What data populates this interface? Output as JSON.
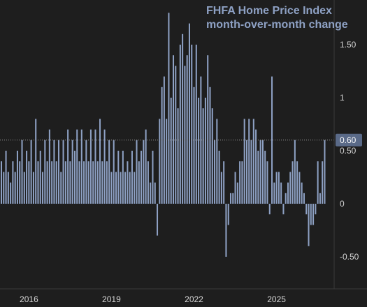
{
  "theme": {
    "background": "#1e1e1e",
    "bar_color": "#8ea1c4",
    "title_color": "#8ea1c4",
    "axis_text": "#d6d6d6",
    "last_badge": "#5a6a88"
  },
  "chart_data": {
    "type": "bar",
    "title_line1": "FHFA Home Price Index",
    "title_line2": "month-over-month change",
    "xlabel": "",
    "ylabel": "",
    "x_ticks": [
      "2016",
      "2019",
      "2022",
      "2025"
    ],
    "y_ticks": [
      "1.50",
      "1",
      "0.50",
      "0",
      "-0.50"
    ],
    "y_tick_values": [
      1.5,
      1,
      0.5,
      0,
      -0.5
    ],
    "ylim": [
      -0.8,
      1.9
    ],
    "x_start": "2015-01",
    "x_end": "2025-06",
    "last_value_label": "0.60",
    "last_value": 0.6,
    "grid": false,
    "series": [
      {
        "values": [
          0.4,
          0.3,
          0.5,
          0.3,
          0.2,
          0.4,
          0.3,
          0.5,
          0.4,
          0.6,
          0.3,
          0.5,
          0.4,
          0.6,
          0.3,
          0.8,
          0.4,
          0.5,
          0.3,
          0.6,
          0.4,
          0.7,
          0.4,
          0.6,
          0.4,
          0.6,
          0.3,
          0.6,
          0.4,
          0.7,
          0.4,
          0.6,
          0.5,
          0.7,
          0.4,
          0.7,
          0.4,
          0.6,
          0.4,
          0.7,
          0.4,
          0.7,
          0.4,
          0.8,
          0.4,
          0.7,
          0.4,
          0.6,
          0.3,
          0.6,
          0.3,
          0.5,
          0.3,
          0.5,
          0.3,
          0.4,
          0.3,
          0.5,
          0.3,
          0.6,
          0.4,
          0.5,
          0.6,
          0.7,
          0.4,
          0.2,
          0.5,
          0.2,
          -0.3,
          0.8,
          1.1,
          1.2,
          0.8,
          1.8,
          1.0,
          1.4,
          1.3,
          0.9,
          1.5,
          1.6,
          1.3,
          1.4,
          1.7,
          1.5,
          1.1,
          1.5,
          1.0,
          1.2,
          0.9,
          1.0,
          1.4,
          1.1,
          0.9,
          0.6,
          0.8,
          0.5,
          0.3,
          0.4,
          -0.5,
          -0.2,
          0.1,
          0.1,
          0.3,
          0.2,
          0.4,
          0.4,
          0.8,
          0.6,
          0.8,
          0.6,
          0.8,
          0.7,
          0.5,
          0.6,
          0.6,
          0.5,
          0.4,
          -0.1,
          1.2,
          0.2,
          0.3,
          0.3,
          0.2,
          -0.1,
          0.1,
          0.2,
          0.3,
          0.4,
          0.6,
          0.4,
          0.3,
          0.2,
          0.1,
          -0.1,
          -0.4,
          -0.2,
          -0.2,
          -0.1,
          0.4,
          0.1,
          0.4,
          0.6
        ]
      }
    ]
  }
}
